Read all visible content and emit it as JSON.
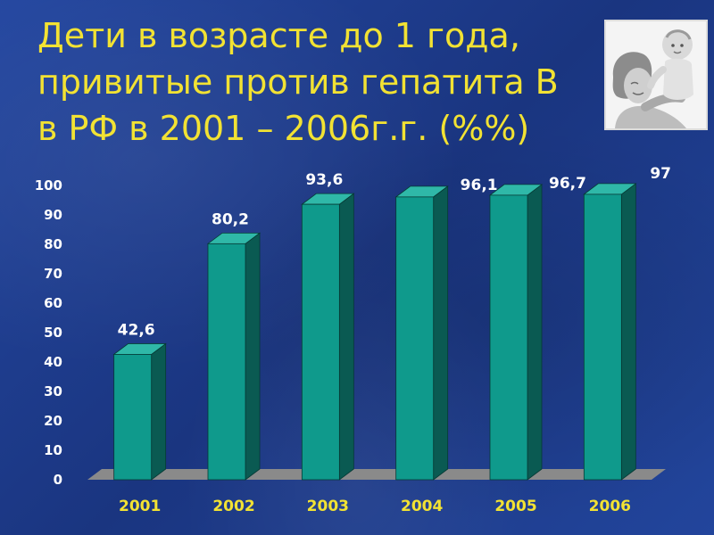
{
  "slide": {
    "title_lines": [
      "Дети в возрасте до 1 года,",
      "привитые против гепатита В",
      "в РФ в 2001 – 2006г.г. (%%)"
    ]
  },
  "chart_data": {
    "type": "bar",
    "title": "Дети в возрасте до 1 года, привитые против гепатита В в РФ в 2001 – 2006г.г. (%%)",
    "categories": [
      "2001",
      "2002",
      "2003",
      "2004",
      "2005",
      "2006"
    ],
    "values": [
      42.6,
      80.2,
      93.6,
      96.1,
      96.7,
      97
    ],
    "data_labels": [
      "42,6",
      "80,2",
      "93,6",
      "96,1",
      "96,7",
      "97"
    ],
    "ylim": [
      0,
      100
    ],
    "yticks": [
      0,
      10,
      20,
      30,
      40,
      50,
      60,
      70,
      80,
      90,
      100
    ],
    "xlabel": "",
    "ylabel": "",
    "grid": false,
    "legend": "none",
    "style": "3d-column",
    "colors": {
      "bar_front": "#0f9a8c",
      "bar_side": "#0a5a52",
      "bar_top": "#2fb8a8",
      "floor": "#8a8a8a",
      "title_text": "#f2e233",
      "category_text": "#f2e233",
      "tick_text": "#ffffff",
      "label_text": "#ffffff"
    }
  },
  "photo": {
    "icon": "mother-and-baby-photo"
  }
}
